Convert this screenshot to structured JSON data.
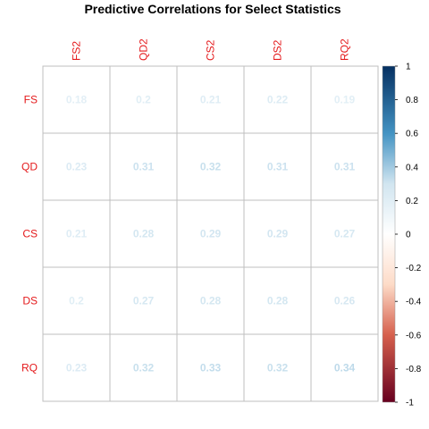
{
  "chart_data": {
    "type": "heatmap",
    "title": "Predictive Correlations for Select Statistics",
    "rows": [
      "FS",
      "QD",
      "CS",
      "DS",
      "RQ"
    ],
    "columns": [
      "FS2",
      "QD2",
      "CS2",
      "DS2",
      "RQ2"
    ],
    "values": [
      [
        0.18,
        0.2,
        0.21,
        0.22,
        0.19
      ],
      [
        0.23,
        0.31,
        0.32,
        0.31,
        0.31
      ],
      [
        0.21,
        0.28,
        0.29,
        0.29,
        0.27
      ],
      [
        0.2,
        0.27,
        0.28,
        0.28,
        0.26
      ],
      [
        0.23,
        0.32,
        0.33,
        0.32,
        0.34
      ]
    ],
    "cell_labels": [
      [
        "0.18",
        "0.2",
        "0.21",
        "0.22",
        "0.19"
      ],
      [
        "0.23",
        "0.31",
        "0.32",
        "0.31",
        "0.31"
      ],
      [
        "0.21",
        "0.28",
        "0.29",
        "0.29",
        "0.27"
      ],
      [
        "0.2",
        "0.27",
        "0.28",
        "0.28",
        "0.26"
      ],
      [
        "0.23",
        "0.32",
        "0.33",
        "0.32",
        "0.34"
      ]
    ],
    "colorbar": {
      "range": [
        -1,
        1
      ],
      "ticks": [
        "1",
        "0.8",
        "0.6",
        "0.4",
        "0.2",
        "0",
        "-0.2",
        "-0.4",
        "-0.6",
        "-0.8",
        "-1"
      ],
      "colors": {
        "-1": "#67001f",
        "-0.6": "#d6604d",
        "-0.3": "#fddbc7",
        "0": "#ffffff",
        "0.3": "#d1e5f0",
        "0.6": "#4393c3",
        "1": "#053061"
      }
    },
    "label_color": "#e41a1c",
    "grid_color": "#bfbfbf",
    "cell_fill": "#ffffff"
  }
}
